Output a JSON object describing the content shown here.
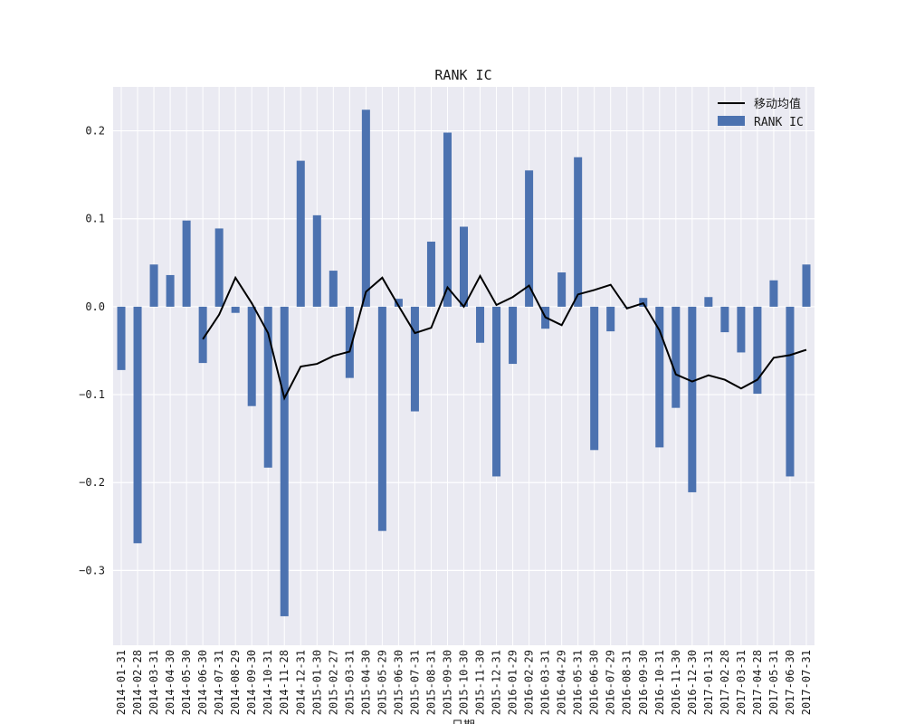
{
  "chart_data": {
    "type": "bar",
    "title": "RANK IC",
    "xlabel": "日期",
    "ylabel": "",
    "ylim": [
      -0.385,
      0.25
    ],
    "yticks": [
      0.2,
      0.1,
      0.0,
      -0.1,
      -0.2,
      -0.3
    ],
    "ytick_labels": [
      "0.2",
      "0.1",
      "0.0",
      "−0.1",
      "−0.2",
      "−0.3"
    ],
    "grid": true,
    "legend_position": "top-right",
    "categories": [
      "2014-01-31",
      "2014-02-28",
      "2014-03-31",
      "2014-04-30",
      "2014-05-30",
      "2014-06-30",
      "2014-07-31",
      "2014-08-29",
      "2014-09-30",
      "2014-10-31",
      "2014-11-28",
      "2014-12-31",
      "2015-01-30",
      "2015-02-27",
      "2015-03-31",
      "2015-04-30",
      "2015-05-29",
      "2015-06-30",
      "2015-07-31",
      "2015-08-31",
      "2015-09-30",
      "2015-10-30",
      "2015-11-30",
      "2015-12-31",
      "2016-01-29",
      "2016-02-29",
      "2016-03-31",
      "2016-04-29",
      "2016-05-31",
      "2016-06-30",
      "2016-07-29",
      "2016-08-31",
      "2016-09-30",
      "2016-10-31",
      "2016-11-30",
      "2016-12-30",
      "2017-01-31",
      "2017-02-28",
      "2017-03-31",
      "2017-04-28",
      "2017-05-31",
      "2017-06-30",
      "2017-07-31"
    ],
    "series": [
      {
        "name": "RANK IC",
        "kind": "bar",
        "color": "#4c72b0",
        "values": [
          -0.072,
          -0.269,
          0.048,
          0.036,
          0.098,
          -0.064,
          0.089,
          -0.007,
          -0.113,
          -0.183,
          -0.352,
          0.166,
          0.104,
          0.041,
          -0.081,
          0.224,
          -0.255,
          0.009,
          -0.119,
          0.074,
          0.198,
          0.091,
          -0.041,
          -0.193,
          -0.065,
          0.155,
          -0.025,
          0.039,
          0.17,
          -0.163,
          -0.028,
          0.0,
          0.01,
          -0.16,
          -0.115,
          -0.211,
          0.011,
          -0.029,
          -0.052,
          -0.099,
          0.03,
          -0.193,
          0.048
        ]
      },
      {
        "name": "移动均值",
        "kind": "line",
        "color": "#000000",
        "values": [
          null,
          null,
          null,
          null,
          null,
          -0.037,
          -0.009,
          0.033,
          0.004,
          -0.03,
          -0.104,
          -0.068,
          -0.065,
          -0.056,
          -0.051,
          0.017,
          0.033,
          0.001,
          -0.03,
          -0.024,
          0.022,
          0.0,
          0.035,
          0.002,
          0.011,
          0.024,
          -0.012,
          -0.021,
          0.014,
          0.019,
          0.025,
          -0.002,
          0.004,
          -0.027,
          -0.077,
          -0.085,
          -0.078,
          -0.083,
          -0.093,
          -0.083,
          -0.058,
          -0.055,
          -0.049
        ]
      }
    ]
  }
}
